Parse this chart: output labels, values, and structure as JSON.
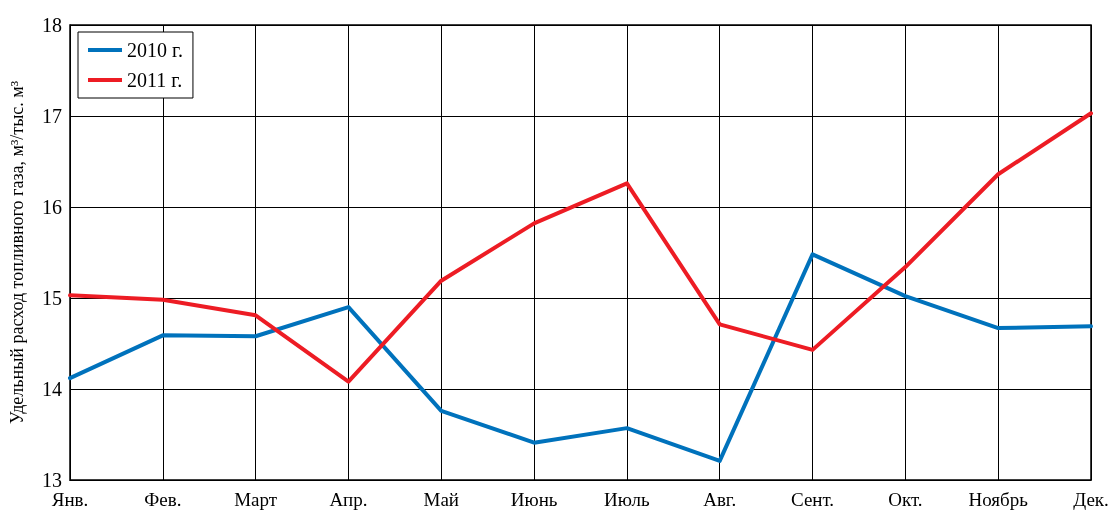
{
  "chart_data": {
    "type": "line",
    "ylabel": "Удельный расход топливного газа, м³/тыс. м³",
    "categories": [
      "Янв.",
      "Фев.",
      "Март",
      "Апр.",
      "Май",
      "Июнь",
      "Июль",
      "Авг.",
      "Сент.",
      "Окт.",
      "Ноябрь",
      "Дек."
    ],
    "series": [
      {
        "name": "2010 г.",
        "color": "#0072bc",
        "values": [
          14.12,
          14.59,
          14.58,
          14.9,
          13.76,
          13.41,
          13.57,
          13.21,
          15.48,
          15.02,
          14.67,
          14.69
        ]
      },
      {
        "name": "2011 г.",
        "color": "#ed1c24",
        "values": [
          15.03,
          14.98,
          14.81,
          14.08,
          15.19,
          15.82,
          16.26,
          14.71,
          14.43,
          15.34,
          16.36,
          17.03
        ]
      }
    ],
    "ylim": [
      13,
      18
    ],
    "yticks": [
      13,
      14,
      15,
      16,
      17,
      18
    ],
    "grid": true,
    "legend": "top left",
    "marker": "none",
    "line_style": "solid"
  }
}
